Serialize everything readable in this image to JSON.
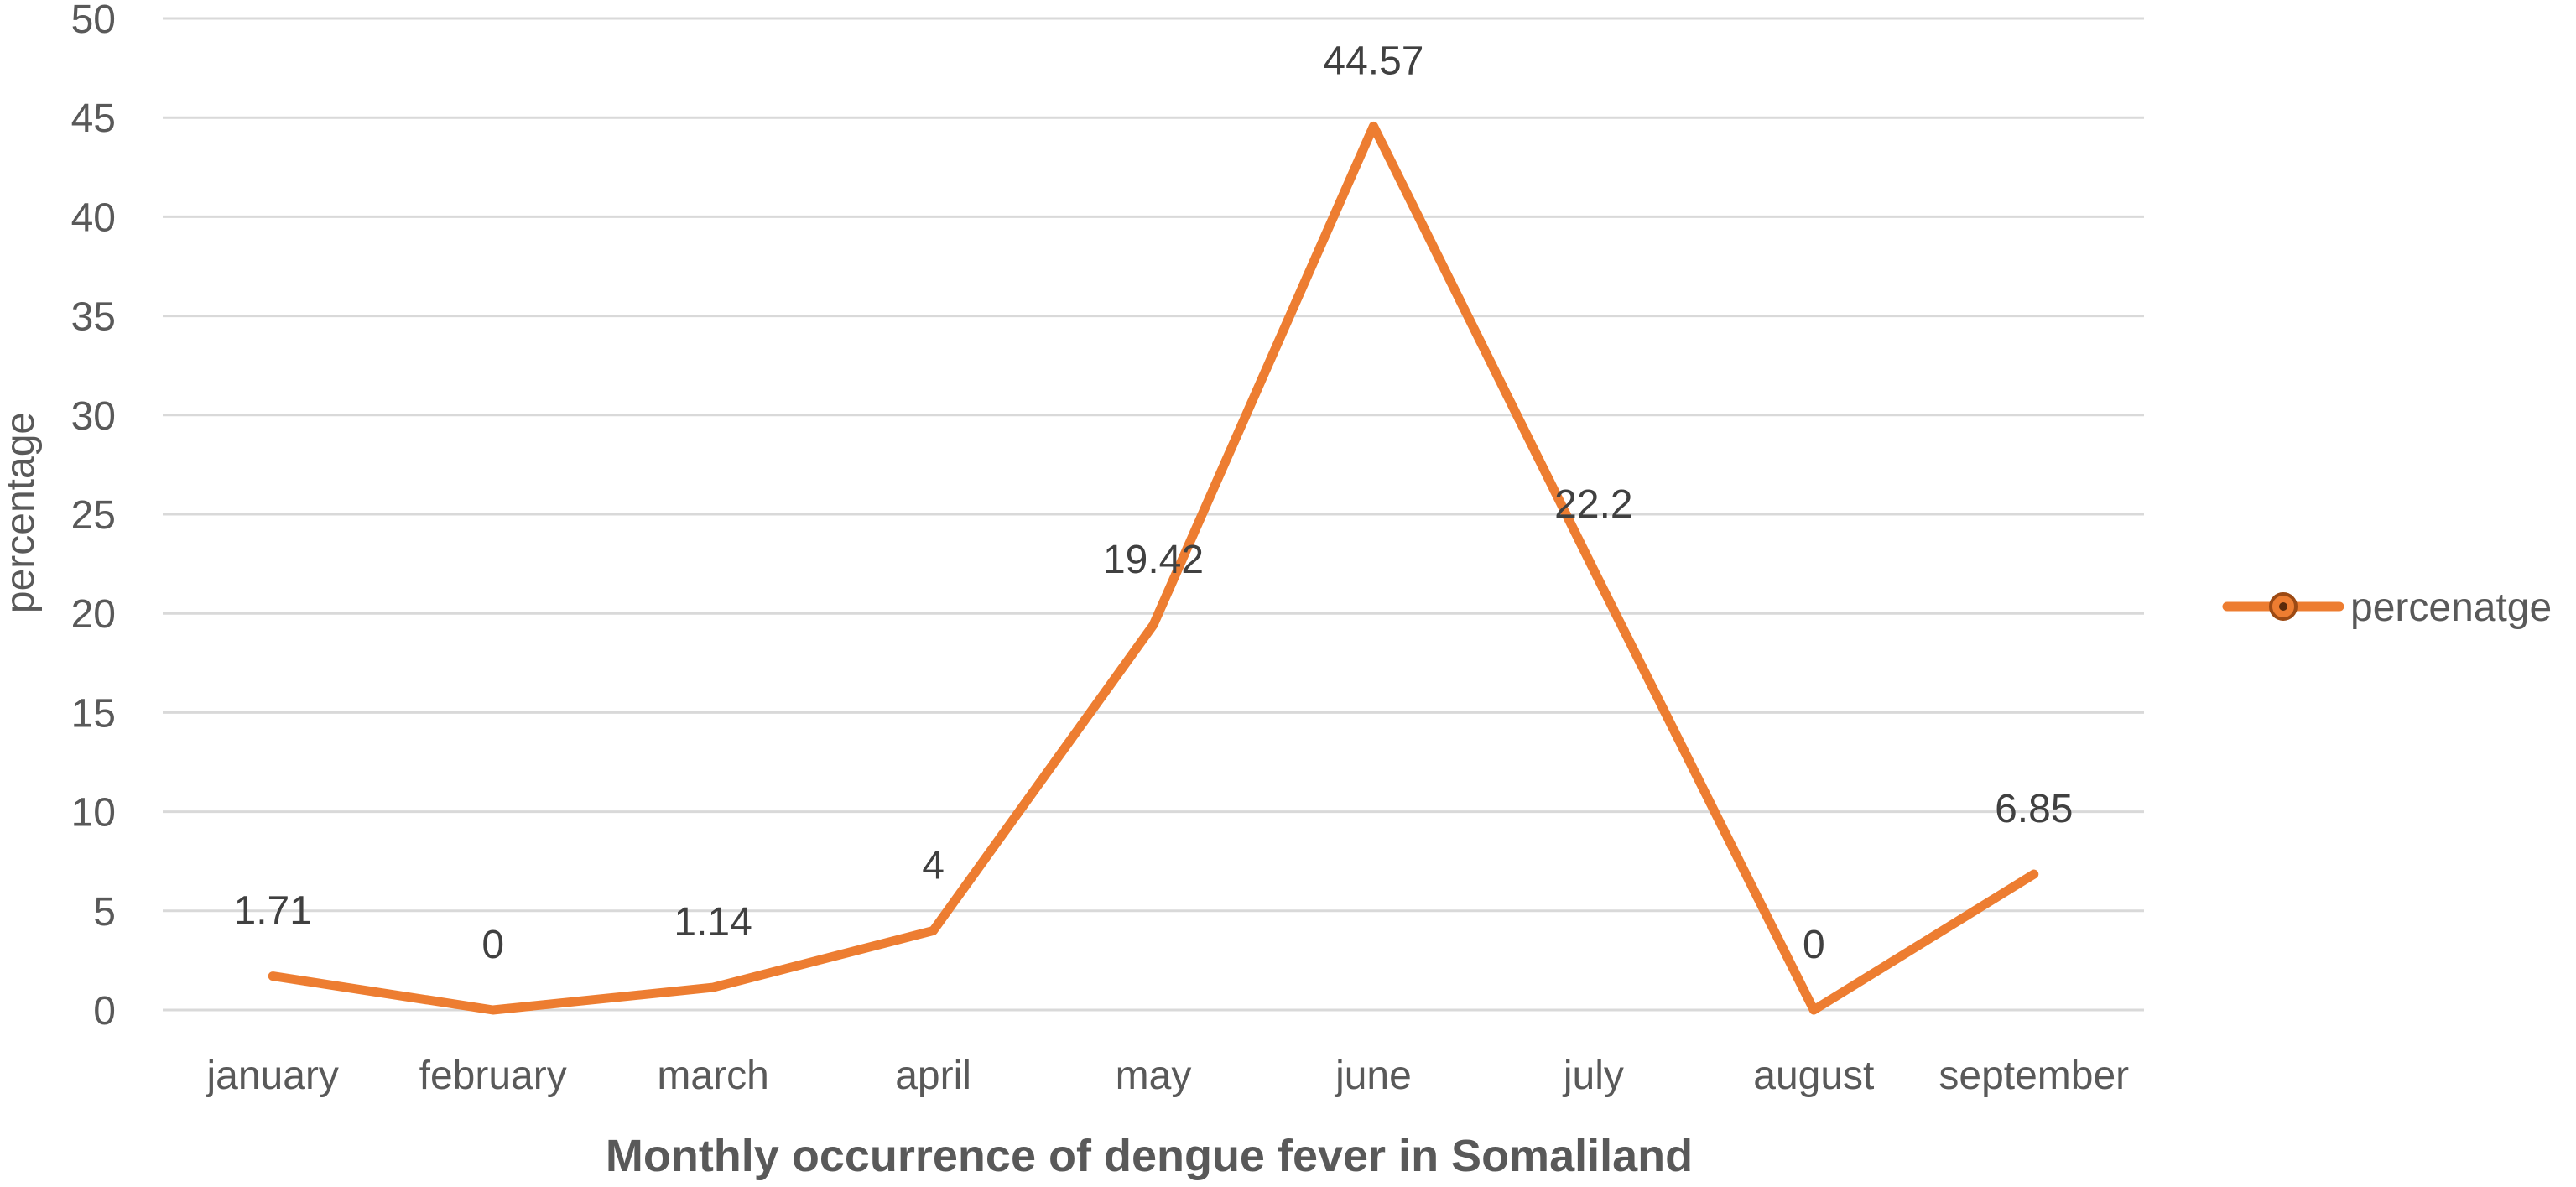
{
  "chart_data": {
    "type": "line",
    "title": "",
    "xlabel": "Monthly occurrence of dengue fever in Somaliland",
    "ylabel": "percentage",
    "categories": [
      "january",
      "february",
      "march",
      "april",
      "may",
      "june",
      "july",
      "august",
      "september"
    ],
    "series": [
      {
        "name": "percenatge",
        "values": [
          1.71,
          0,
          1.14,
          4,
          19.42,
          44.57,
          22.2,
          0,
          6.85
        ],
        "data_labels": [
          "1.71",
          "0",
          "1.14",
          "4",
          "19.42",
          "44.57",
          "22.2",
          "0",
          "6.85"
        ],
        "color": "#ED7D31"
      }
    ],
    "ylim": [
      0,
      50
    ],
    "yticks": [
      "0",
      "5",
      "10",
      "15",
      "20",
      "25",
      "30",
      "35",
      "40",
      "45",
      "50"
    ],
    "grid": true,
    "gridline_color": "#D9D9D9",
    "legend_position": "right"
  }
}
